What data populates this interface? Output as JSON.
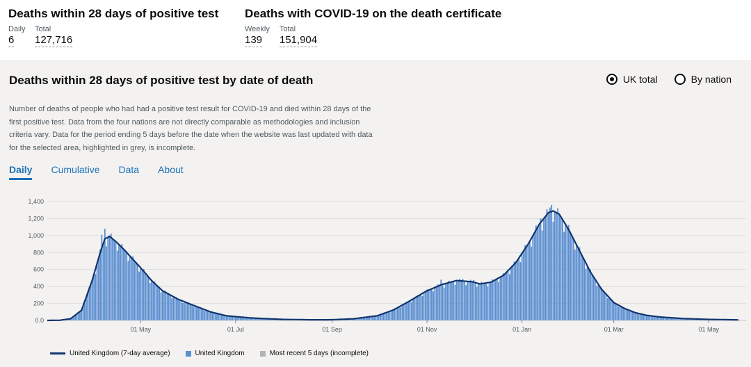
{
  "headlines": [
    {
      "title": "Deaths within 28 days of positive test",
      "metrics": [
        {
          "label": "Daily",
          "value": "6"
        },
        {
          "label": "Total",
          "value": "127,716"
        }
      ]
    },
    {
      "title": "Deaths with COVID-19 on the death certificate",
      "metrics": [
        {
          "label": "Weekly",
          "value": "139"
        },
        {
          "label": "Total",
          "value": "151,904"
        }
      ]
    }
  ],
  "card": {
    "title": "Deaths within 28 days of positive test by date of death",
    "radios": [
      {
        "label": "UK total",
        "checked": true
      },
      {
        "label": "By nation",
        "checked": false
      }
    ],
    "description": "Number of deaths of people who had had a positive test result for COVID-19 and died within 28 days of the first positive test. Data from the four nations are not directly comparable as methodologies and inclusion criteria vary. Data for the period ending 5 days before the date when the website was last updated with data for the selected area, highlighted in grey, is incomplete.",
    "tabs": [
      "Daily",
      "Cumulative",
      "Data",
      "About"
    ],
    "active_tab": "Daily"
  },
  "colors": {
    "bar": "#5b8fd1",
    "line": "#12356e",
    "incomplete": "#b1b4b6",
    "grid": "#dcdcdc"
  },
  "chart_data": {
    "type": "bar",
    "y_ticks": [
      0,
      200,
      400,
      600,
      800,
      1000,
      1200,
      1400
    ],
    "y_tick_labels": [
      "0.0",
      "200",
      "400",
      "600",
      "800",
      "1,000",
      "1,200",
      "1,400"
    ],
    "ylim": [
      0,
      1400
    ],
    "x_ticks": [
      {
        "date": "2020-05-01",
        "label": "01 May"
      },
      {
        "date": "2020-07-01",
        "label": "01 Jul"
      },
      {
        "date": "2020-09-01",
        "label": "01 Sep"
      },
      {
        "date": "2020-11-01",
        "label": "01 Nov"
      },
      {
        "date": "2021-01-01",
        "label": "01 Jan"
      },
      {
        "date": "2021-03-01",
        "label": "01 Mar"
      },
      {
        "date": "2021-05-01",
        "label": "01 May"
      }
    ],
    "x_range": [
      "2020-03-02",
      "2021-05-25"
    ],
    "series": [
      {
        "name": "United Kingdom (7-day average)",
        "kind": "line"
      },
      {
        "name": "United Kingdom",
        "kind": "bar"
      },
      {
        "name": "Most recent 5 days (incomplete)",
        "kind": "bar"
      }
    ],
    "profile": [
      {
        "date": "2020-03-02",
        "value": 0
      },
      {
        "date": "2020-03-10",
        "value": 2
      },
      {
        "date": "2020-03-17",
        "value": 20
      },
      {
        "date": "2020-03-24",
        "value": 120
      },
      {
        "date": "2020-03-31",
        "value": 480
      },
      {
        "date": "2020-04-05",
        "value": 800
      },
      {
        "date": "2020-04-08",
        "value": 960
      },
      {
        "date": "2020-04-11",
        "value": 990
      },
      {
        "date": "2020-04-15",
        "value": 930
      },
      {
        "date": "2020-04-20",
        "value": 840
      },
      {
        "date": "2020-04-25",
        "value": 740
      },
      {
        "date": "2020-05-01",
        "value": 620
      },
      {
        "date": "2020-05-08",
        "value": 470
      },
      {
        "date": "2020-05-15",
        "value": 350
      },
      {
        "date": "2020-05-25",
        "value": 250
      },
      {
        "date": "2020-06-05",
        "value": 170
      },
      {
        "date": "2020-06-15",
        "value": 100
      },
      {
        "date": "2020-06-25",
        "value": 55
      },
      {
        "date": "2020-07-10",
        "value": 30
      },
      {
        "date": "2020-07-31",
        "value": 12
      },
      {
        "date": "2020-08-20",
        "value": 7
      },
      {
        "date": "2020-09-01",
        "value": 8
      },
      {
        "date": "2020-09-15",
        "value": 20
      },
      {
        "date": "2020-09-30",
        "value": 55
      },
      {
        "date": "2020-10-10",
        "value": 120
      },
      {
        "date": "2020-10-20",
        "value": 220
      },
      {
        "date": "2020-10-31",
        "value": 340
      },
      {
        "date": "2020-11-10",
        "value": 420
      },
      {
        "date": "2020-11-20",
        "value": 470
      },
      {
        "date": "2020-11-30",
        "value": 455
      },
      {
        "date": "2020-12-05",
        "value": 430
      },
      {
        "date": "2020-12-12",
        "value": 450
      },
      {
        "date": "2020-12-20",
        "value": 530
      },
      {
        "date": "2020-12-28",
        "value": 680
      },
      {
        "date": "2021-01-05",
        "value": 900
      },
      {
        "date": "2021-01-12",
        "value": 1130
      },
      {
        "date": "2021-01-18",
        "value": 1270
      },
      {
        "date": "2021-01-21",
        "value": 1290
      },
      {
        "date": "2021-01-25",
        "value": 1250
      },
      {
        "date": "2021-01-31",
        "value": 1070
      },
      {
        "date": "2021-02-07",
        "value": 820
      },
      {
        "date": "2021-02-14",
        "value": 570
      },
      {
        "date": "2021-02-21",
        "value": 370
      },
      {
        "date": "2021-03-01",
        "value": 210
      },
      {
        "date": "2021-03-08",
        "value": 140
      },
      {
        "date": "2021-03-15",
        "value": 90
      },
      {
        "date": "2021-03-22",
        "value": 60
      },
      {
        "date": "2021-03-31",
        "value": 40
      },
      {
        "date": "2021-04-15",
        "value": 22
      },
      {
        "date": "2021-05-01",
        "value": 12
      },
      {
        "date": "2021-05-15",
        "value": 8
      },
      {
        "date": "2021-05-25",
        "value": 5
      }
    ],
    "spikes": [
      {
        "date": "2020-04-08",
        "value": 1080
      },
      {
        "date": "2020-04-06",
        "value": 1010
      },
      {
        "date": "2020-11-10",
        "value": 480
      },
      {
        "date": "2020-11-24",
        "value": 490
      },
      {
        "date": "2020-12-01",
        "value": 475
      },
      {
        "date": "2021-01-19",
        "value": 1330
      },
      {
        "date": "2021-01-20",
        "value": 1360
      },
      {
        "date": "2021-01-13",
        "value": 1200
      },
      {
        "date": "2021-01-27",
        "value": 1200
      }
    ],
    "incomplete_days": 5
  }
}
